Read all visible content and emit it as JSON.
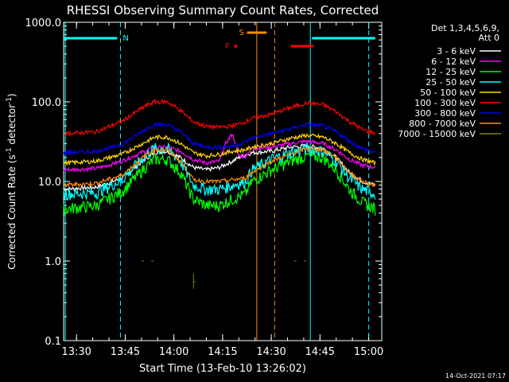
{
  "chart_data": {
    "type": "line",
    "title": "RHESSI Observing Summary Count Rates, Corrected",
    "xlabel": "Start Time (13-Feb-10 13:26:02)",
    "ylabel_parts": [
      "Corrected Count Rate (s",
      "-1",
      " detector",
      "-1",
      ")"
    ],
    "y_scale": "log",
    "ylim": [
      0.1,
      1000
    ],
    "xlim_minutes": [
      0,
      98
    ],
    "x_ticks": [
      {
        "minute": 3.97,
        "label": "13:30"
      },
      {
        "minute": 18.97,
        "label": "13:45"
      },
      {
        "minute": 33.97,
        "label": "14:00"
      },
      {
        "minute": 48.97,
        "label": "14:15"
      },
      {
        "minute": 63.97,
        "label": "14:30"
      },
      {
        "minute": 78.97,
        "label": "14:45"
      },
      {
        "minute": 93.97,
        "label": "15:00"
      }
    ],
    "y_ticks": [
      {
        "value": 1000,
        "label": "1000.0"
      },
      {
        "value": 100,
        "label": "100.0"
      },
      {
        "value": 10,
        "label": "10.0"
      },
      {
        "value": 1,
        "label": "1.0"
      },
      {
        "value": 0.1,
        "label": "0.1"
      }
    ],
    "legend_header": [
      "Det 1,3,4,5,6,9,",
      "Att 0"
    ],
    "footer_date": "14-Oct-2021 07:17",
    "day_night_bars": [
      {
        "label": "N",
        "x_start": 0,
        "x_end": 16.5,
        "color": "#00ffff",
        "text_color": "#00ffff"
      }
    ],
    "night_bar_right": {
      "x_start": 76.5,
      "x_end": 96,
      "color": "#00ffff"
    },
    "saa_bar": {
      "label": "S",
      "x_start": 56.5,
      "x_end": 62.5,
      "color": "#ff8c00"
    },
    "flare_bars": [
      {
        "label": "F",
        "x_start": 52.5,
        "x_end": 53.5,
        "color": "#ff0000"
      },
      {
        "x_start": 70,
        "x_end": 77,
        "color": "#ff0000"
      }
    ],
    "vertical_lines": [
      {
        "minute": 0.5,
        "color": "#00ffff",
        "style": "solid"
      },
      {
        "minute": 17.5,
        "color": "#00ffff",
        "style": "dashed"
      },
      {
        "minute": 59.5,
        "color": "#ff8c00",
        "style": "solid"
      },
      {
        "minute": 65,
        "color": "#ff8c00",
        "style": "dashed"
      },
      {
        "minute": 76,
        "color": "#00ffff",
        "style": "solid"
      },
      {
        "minute": 94,
        "color": "#00ffff",
        "style": "dashed"
      }
    ],
    "series": [
      {
        "name": "3 - 6 keV",
        "color": "#ffffff",
        "points": [
          [
            0,
            8
          ],
          [
            10,
            8.5
          ],
          [
            18,
            11
          ],
          [
            25,
            19
          ],
          [
            28,
            23
          ],
          [
            32,
            24
          ],
          [
            36,
            20
          ],
          [
            40,
            15
          ],
          [
            44,
            14
          ],
          [
            48,
            15
          ],
          [
            52,
            18
          ],
          [
            54,
            20
          ],
          [
            58,
            23
          ],
          [
            64,
            24
          ],
          [
            70,
            27
          ],
          [
            75,
            28
          ],
          [
            80,
            26
          ],
          [
            84,
            20
          ],
          [
            88,
            13
          ],
          [
            92,
            10
          ],
          [
            96,
            9
          ]
        ]
      },
      {
        "name": "6 - 12 keV",
        "color": "#ff00ff",
        "points": [
          [
            0,
            14
          ],
          [
            10,
            14.5
          ],
          [
            18,
            18
          ],
          [
            25,
            24
          ],
          [
            28,
            27
          ],
          [
            32,
            27
          ],
          [
            36,
            24
          ],
          [
            40,
            19
          ],
          [
            44,
            17
          ],
          [
            48,
            18
          ],
          [
            50,
            30
          ],
          [
            52,
            40
          ],
          [
            54,
            21
          ],
          [
            56,
            21
          ],
          [
            58,
            26
          ],
          [
            64,
            27
          ],
          [
            70,
            30
          ],
          [
            75,
            32
          ],
          [
            80,
            30
          ],
          [
            84,
            25
          ],
          [
            88,
            19
          ],
          [
            92,
            16
          ],
          [
            96,
            15
          ]
        ]
      },
      {
        "name": "12 - 25 keV",
        "color": "#00ff00",
        "points": [
          [
            0,
            4.5
          ],
          [
            10,
            5
          ],
          [
            18,
            7.5
          ],
          [
            25,
            15
          ],
          [
            28,
            19
          ],
          [
            32,
            19
          ],
          [
            36,
            13
          ],
          [
            40,
            6
          ],
          [
            44,
            5
          ],
          [
            48,
            5
          ],
          [
            52,
            6
          ],
          [
            56,
            7
          ],
          [
            58,
            10
          ],
          [
            64,
            14
          ],
          [
            70,
            18
          ],
          [
            75,
            21
          ],
          [
            80,
            20
          ],
          [
            84,
            14
          ],
          [
            88,
            8
          ],
          [
            92,
            5.5
          ],
          [
            96,
            4.5
          ]
        ]
      },
      {
        "name": "25 - 50 keV",
        "color": "#00ffff",
        "points": [
          [
            0,
            7
          ],
          [
            10,
            7.2
          ],
          [
            18,
            10.5
          ],
          [
            25,
            21
          ],
          [
            28,
            26
          ],
          [
            32,
            26
          ],
          [
            36,
            18
          ],
          [
            40,
            9
          ],
          [
            44,
            8
          ],
          [
            48,
            8
          ],
          [
            52,
            9
          ],
          [
            56,
            10
          ],
          [
            58,
            14
          ],
          [
            64,
            19
          ],
          [
            70,
            23
          ],
          [
            75,
            26
          ],
          [
            80,
            24
          ],
          [
            84,
            18
          ],
          [
            88,
            11
          ],
          [
            92,
            8
          ],
          [
            96,
            7
          ]
        ]
      },
      {
        "name": "50 - 100 keV",
        "color": "#ffd700",
        "points": [
          [
            0,
            17
          ],
          [
            10,
            18
          ],
          [
            18,
            22
          ],
          [
            25,
            31
          ],
          [
            28,
            36
          ],
          [
            32,
            36
          ],
          [
            36,
            30
          ],
          [
            40,
            23
          ],
          [
            44,
            21
          ],
          [
            48,
            22
          ],
          [
            52,
            24
          ],
          [
            56,
            25
          ],
          [
            58,
            27
          ],
          [
            64,
            30
          ],
          [
            70,
            35
          ],
          [
            75,
            38
          ],
          [
            80,
            36
          ],
          [
            84,
            30
          ],
          [
            88,
            23
          ],
          [
            92,
            19
          ],
          [
            96,
            17
          ]
        ]
      },
      {
        "name": "100 - 300 keV",
        "color": "#ff0000",
        "points": [
          [
            0,
            40
          ],
          [
            10,
            42
          ],
          [
            18,
            57
          ],
          [
            25,
            88
          ],
          [
            28,
            100
          ],
          [
            32,
            100
          ],
          [
            36,
            78
          ],
          [
            40,
            56
          ],
          [
            44,
            49
          ],
          [
            48,
            48
          ],
          [
            52,
            50
          ],
          [
            56,
            56
          ],
          [
            58,
            62
          ],
          [
            64,
            70
          ],
          [
            70,
            85
          ],
          [
            75,
            97
          ],
          [
            80,
            92
          ],
          [
            84,
            75
          ],
          [
            88,
            57
          ],
          [
            92,
            45
          ],
          [
            96,
            40
          ]
        ]
      },
      {
        "name": "300 - 800 keV",
        "color": "#0000ff",
        "points": [
          [
            0,
            23
          ],
          [
            10,
            24
          ],
          [
            18,
            29
          ],
          [
            25,
            45
          ],
          [
            28,
            52
          ],
          [
            32,
            52
          ],
          [
            36,
            42
          ],
          [
            40,
            30
          ],
          [
            44,
            27
          ],
          [
            48,
            27
          ],
          [
            52,
            28
          ],
          [
            56,
            31
          ],
          [
            58,
            35
          ],
          [
            64,
            40
          ],
          [
            70,
            46
          ],
          [
            75,
            52
          ],
          [
            80,
            50
          ],
          [
            84,
            42
          ],
          [
            88,
            32
          ],
          [
            92,
            26
          ],
          [
            96,
            23
          ]
        ]
      },
      {
        "name": "800 - 7000 keV",
        "color": "#ff8c00",
        "points": [
          [
            0,
            9
          ],
          [
            10,
            9.5
          ],
          [
            18,
            12
          ],
          [
            25,
            21
          ],
          [
            28,
            25
          ],
          [
            32,
            25
          ],
          [
            36,
            18
          ],
          [
            40,
            10.5
          ],
          [
            44,
            10
          ],
          [
            48,
            10
          ],
          [
            52,
            10.5
          ],
          [
            56,
            11
          ],
          [
            58,
            13
          ],
          [
            64,
            18
          ],
          [
            70,
            22
          ],
          [
            75,
            26
          ],
          [
            80,
            25
          ],
          [
            84,
            20
          ],
          [
            88,
            13
          ],
          [
            92,
            10
          ],
          [
            96,
            9
          ]
        ]
      },
      {
        "name": "7000 - 15000 keV",
        "color": "#808000",
        "points": [
          [
            24,
            1.0
          ],
          [
            27,
            1.0
          ],
          [
            40,
            0.55
          ],
          [
            71,
            1.0
          ],
          [
            74,
            1.0
          ]
        ]
      }
    ]
  }
}
